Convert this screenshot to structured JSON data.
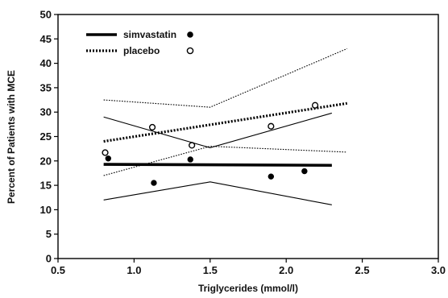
{
  "chart_data": {
    "type": "scatter",
    "xlabel": "Triglycerides (mmol/l)",
    "ylabel": "Percent of Patients with MCE",
    "xlim": [
      0.5,
      3.0
    ],
    "ylim": [
      0,
      50
    ],
    "x_ticks": [
      "0.5",
      "1.0",
      "1.5",
      "2.0",
      "2.5",
      "3.0"
    ],
    "y_ticks": [
      "0",
      "5",
      "10",
      "15",
      "20",
      "25",
      "30",
      "35",
      "40",
      "45",
      "50"
    ],
    "grid": false,
    "legend_position": "top-left",
    "series": [
      {
        "name": "simvastatin",
        "marker": "filled-circle",
        "line_style": "solid-thick",
        "color": "#000000",
        "points": [
          {
            "x": 0.83,
            "y": 20.5
          },
          {
            "x": 1.13,
            "y": 15.5
          },
          {
            "x": 1.37,
            "y": 20.3
          },
          {
            "x": 1.9,
            "y": 16.8
          },
          {
            "x": 2.12,
            "y": 17.9
          }
        ],
        "fit_line": [
          {
            "x": 0.8,
            "y": 19.3
          },
          {
            "x": 2.3,
            "y": 19.1
          }
        ],
        "ci_upper": [
          {
            "x": 0.8,
            "y": 29.0
          },
          {
            "x": 1.5,
            "y": 22.7
          },
          {
            "x": 2.3,
            "y": 29.8
          }
        ],
        "ci_lower": [
          {
            "x": 0.8,
            "y": 12.0
          },
          {
            "x": 1.5,
            "y": 15.7
          },
          {
            "x": 2.3,
            "y": 11.0
          }
        ]
      },
      {
        "name": "placebo",
        "marker": "open-circle",
        "line_style": "dotted-thick",
        "color": "#000000",
        "points": [
          {
            "x": 0.81,
            "y": 21.7
          },
          {
            "x": 1.12,
            "y": 26.9
          },
          {
            "x": 1.38,
            "y": 23.2
          },
          {
            "x": 1.9,
            "y": 27.1
          },
          {
            "x": 2.19,
            "y": 31.4
          }
        ],
        "fit_line": [
          {
            "x": 0.8,
            "y": 24.0
          },
          {
            "x": 2.4,
            "y": 31.8
          }
        ],
        "ci_upper": [
          {
            "x": 0.8,
            "y": 32.5
          },
          {
            "x": 1.5,
            "y": 31.0
          },
          {
            "x": 2.4,
            "y": 43.0
          }
        ],
        "ci_lower": [
          {
            "x": 0.8,
            "y": 17.0
          },
          {
            "x": 1.5,
            "y": 23.0
          },
          {
            "x": 2.4,
            "y": 21.8
          }
        ]
      }
    ]
  }
}
